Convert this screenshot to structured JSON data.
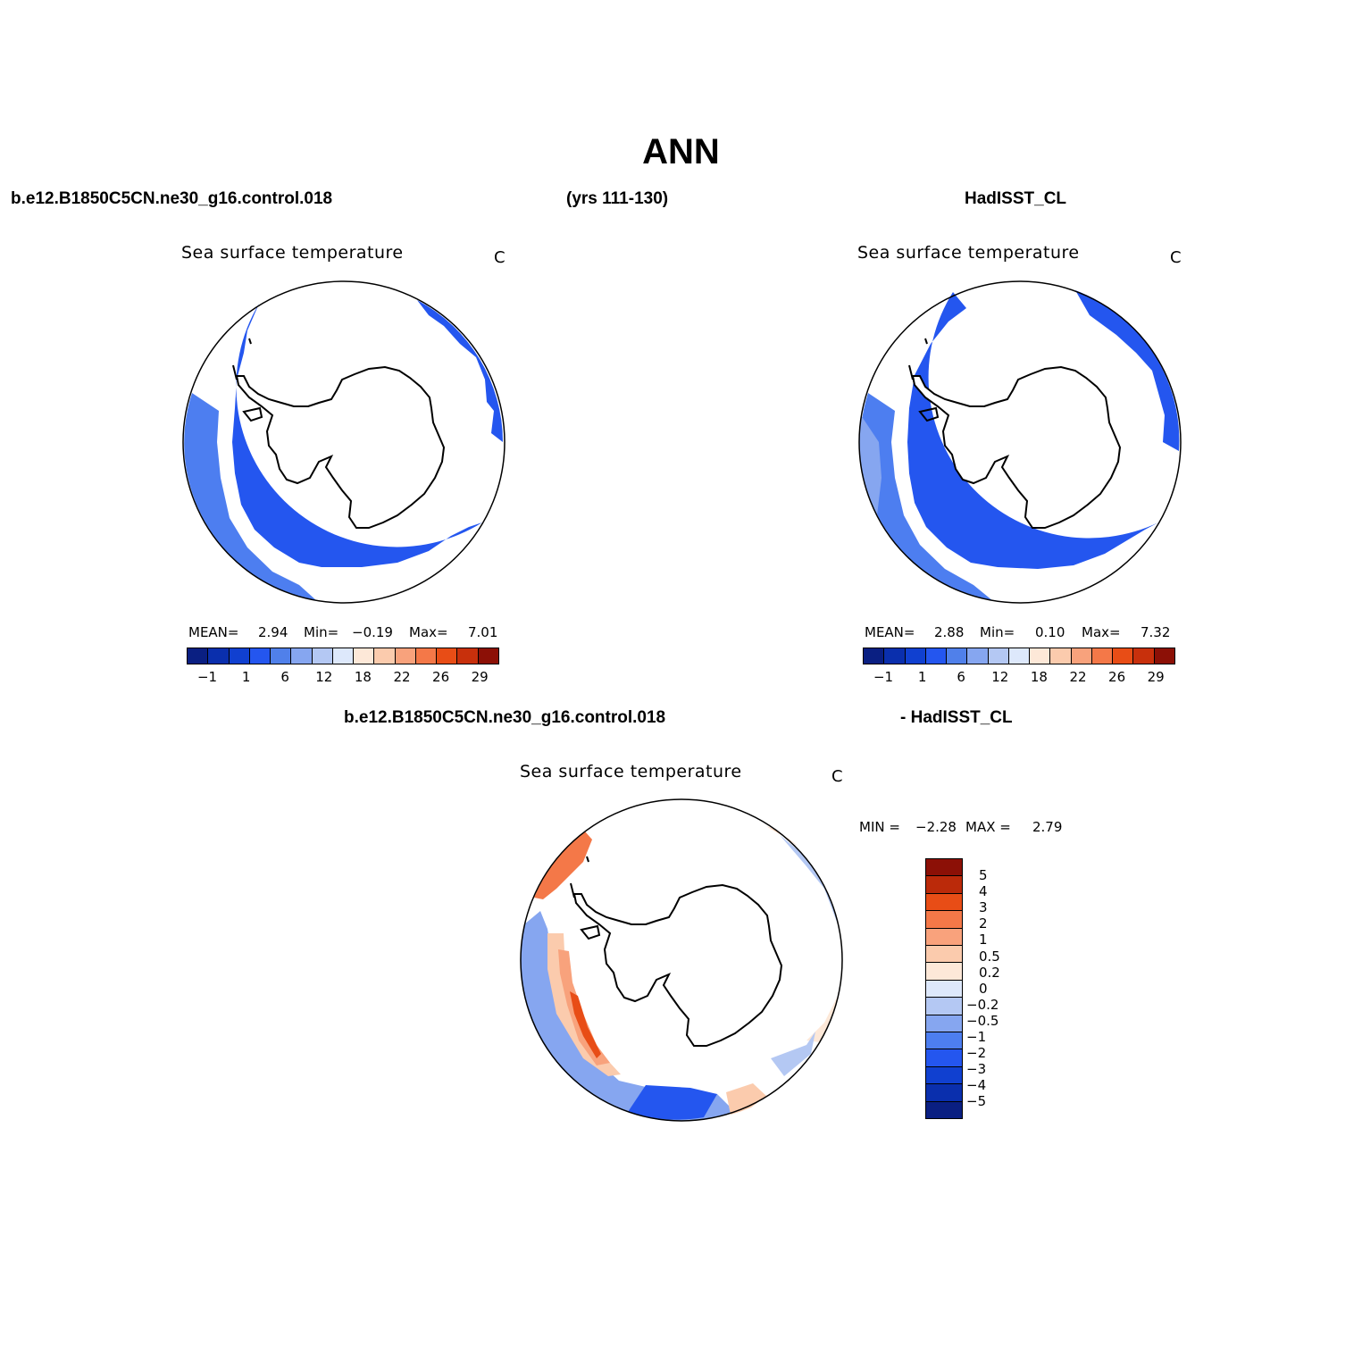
{
  "figure": {
    "title": "ANN",
    "case_name": "b.e12.B1850C5CN.ne30_g16.control.018",
    "years": "(yrs 111-130)",
    "obs_name": "HadISST_CL",
    "diff_case_name": "b.e12.B1850C5CN.ne30_g16.control.018",
    "diff_obs_name": "- HadISST_CL"
  },
  "panels": {
    "model": {
      "title": "Sea surface temperature",
      "units": "C",
      "mean_label": "MEAN=",
      "mean": "2.94",
      "min_label": "Min=",
      "min": "−0.19",
      "max_label": "Max=",
      "max": "7.01"
    },
    "obs": {
      "title": "Sea surface temperature",
      "units": "C",
      "mean_label": "MEAN=",
      "mean": "2.88",
      "min_label": "Min=",
      "min": "0.10",
      "max_label": "Max=",
      "max": "7.32"
    },
    "diff": {
      "title": "Sea surface temperature",
      "units": "C",
      "min_label": "MIN =",
      "min": "−2.28",
      "max_label": "MAX =",
      "max": "2.79"
    }
  },
  "colorbar_abs": {
    "colors": [
      "#0a1f82",
      "#0a2fad",
      "#1040d0",
      "#2456ef",
      "#5080ea",
      "#86a6f0",
      "#b4c8f3",
      "#dde8fb",
      "#fde8d8",
      "#fbcbad",
      "#f8a27c",
      "#f47848",
      "#e84d16",
      "#c8300c",
      "#8c1006"
    ],
    "labels": [
      "−1",
      "1",
      "6",
      "12",
      "18",
      "22",
      "26",
      "29"
    ]
  },
  "colorbar_diff": {
    "colors": [
      "#8c1006",
      "#bb2a0a",
      "#e84d16",
      "#f47848",
      "#f9a27c",
      "#fbcbad",
      "#fde8d8",
      "#dde8fb",
      "#b4c8f3",
      "#86a6f0",
      "#4d7ef0",
      "#2456ef",
      "#1040d0",
      "#0a2fad",
      "#0a1f82"
    ],
    "labels": [
      "5",
      "4",
      "3",
      "2",
      "1",
      "0.5",
      "0.2",
      "0",
      "−0.2",
      "−0.5",
      "−1",
      "−2",
      "−3",
      "−4",
      "−5"
    ]
  }
}
